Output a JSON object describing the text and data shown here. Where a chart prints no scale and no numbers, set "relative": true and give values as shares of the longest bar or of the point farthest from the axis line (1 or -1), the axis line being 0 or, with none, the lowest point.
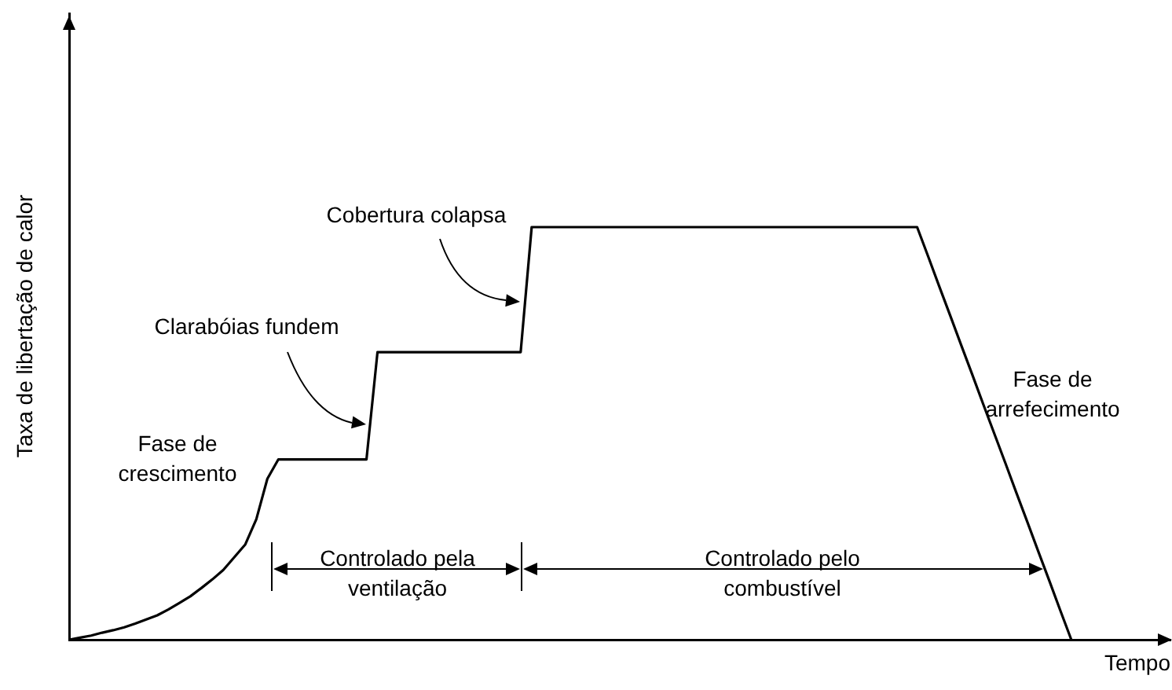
{
  "chart_data": {
    "type": "line",
    "relative": true,
    "xlabel": "Tempo",
    "ylabel": "Taxa de libertação de calor",
    "grid": false,
    "legend": false,
    "line_style": "solid",
    "categories": [
      null,
      null,
      null,
      null,
      null,
      null,
      null,
      null,
      null,
      null,
      null,
      null,
      null,
      null,
      null,
      null,
      null,
      null,
      null,
      null,
      null,
      null,
      null,
      null,
      null,
      null,
      null,
      null,
      null,
      null,
      null,
      null,
      null,
      null,
      null,
      null,
      null,
      null,
      null,
      null,
      null,
      null,
      null,
      null,
      null,
      null,
      null,
      null,
      null,
      null,
      null,
      null,
      null,
      null,
      null,
      null,
      null,
      null,
      null,
      null,
      null,
      null,
      null,
      null,
      null,
      null,
      null,
      null,
      null,
      null,
      null,
      null,
      null,
      null,
      null,
      null,
      null,
      null,
      null,
      null,
      null,
      null,
      null,
      null,
      null,
      null,
      null,
      null,
      null,
      null,
      null,
      null,
      null,
      null,
      null,
      null,
      null,
      null,
      null,
      null,
      null
    ],
    "series": [
      {
        "color": "#000000",
        "values": [
          0,
          0.005,
          0.01,
          0.017,
          0.023,
          0.03,
          0.039,
          0.049,
          0.059,
          0.073,
          0.089,
          0.105,
          0.125,
          0.146,
          0.169,
          0.2,
          0.231,
          0.292,
          0.39,
          0.437,
          0.437,
          0.437,
          0.437,
          0.437,
          0.437,
          0.437,
          0.437,
          0.437,
          0.697,
          0.697,
          0.697,
          0.697,
          0.697,
          0.697,
          0.697,
          0.697,
          0.697,
          0.697,
          0.697,
          0.697,
          0.697,
          0.697,
          1,
          1,
          1,
          1,
          1,
          1,
          1,
          1,
          1,
          1,
          1,
          1,
          1,
          1,
          1,
          1,
          1,
          1,
          1,
          1,
          1,
          1,
          1,
          1,
          1,
          1,
          1,
          1,
          1,
          1,
          1,
          1,
          1,
          1,
          1,
          1,
          0.929,
          0.857,
          0.786,
          0.714,
          0.643,
          0.571,
          0.5,
          0.429,
          0.357,
          0.286,
          0.214,
          0.143,
          0.071,
          0,
          null,
          null,
          null,
          null,
          null,
          null,
          null,
          null,
          null
        ]
      }
    ],
    "annotations": [
      "Fase de\ncrescimento",
      "Clarabóias fundem",
      "Cobertura colapsa",
      "Fase de\narrefecimento",
      "Controlado pela\nventilação",
      "Controlado pelo\ncombustível"
    ]
  }
}
